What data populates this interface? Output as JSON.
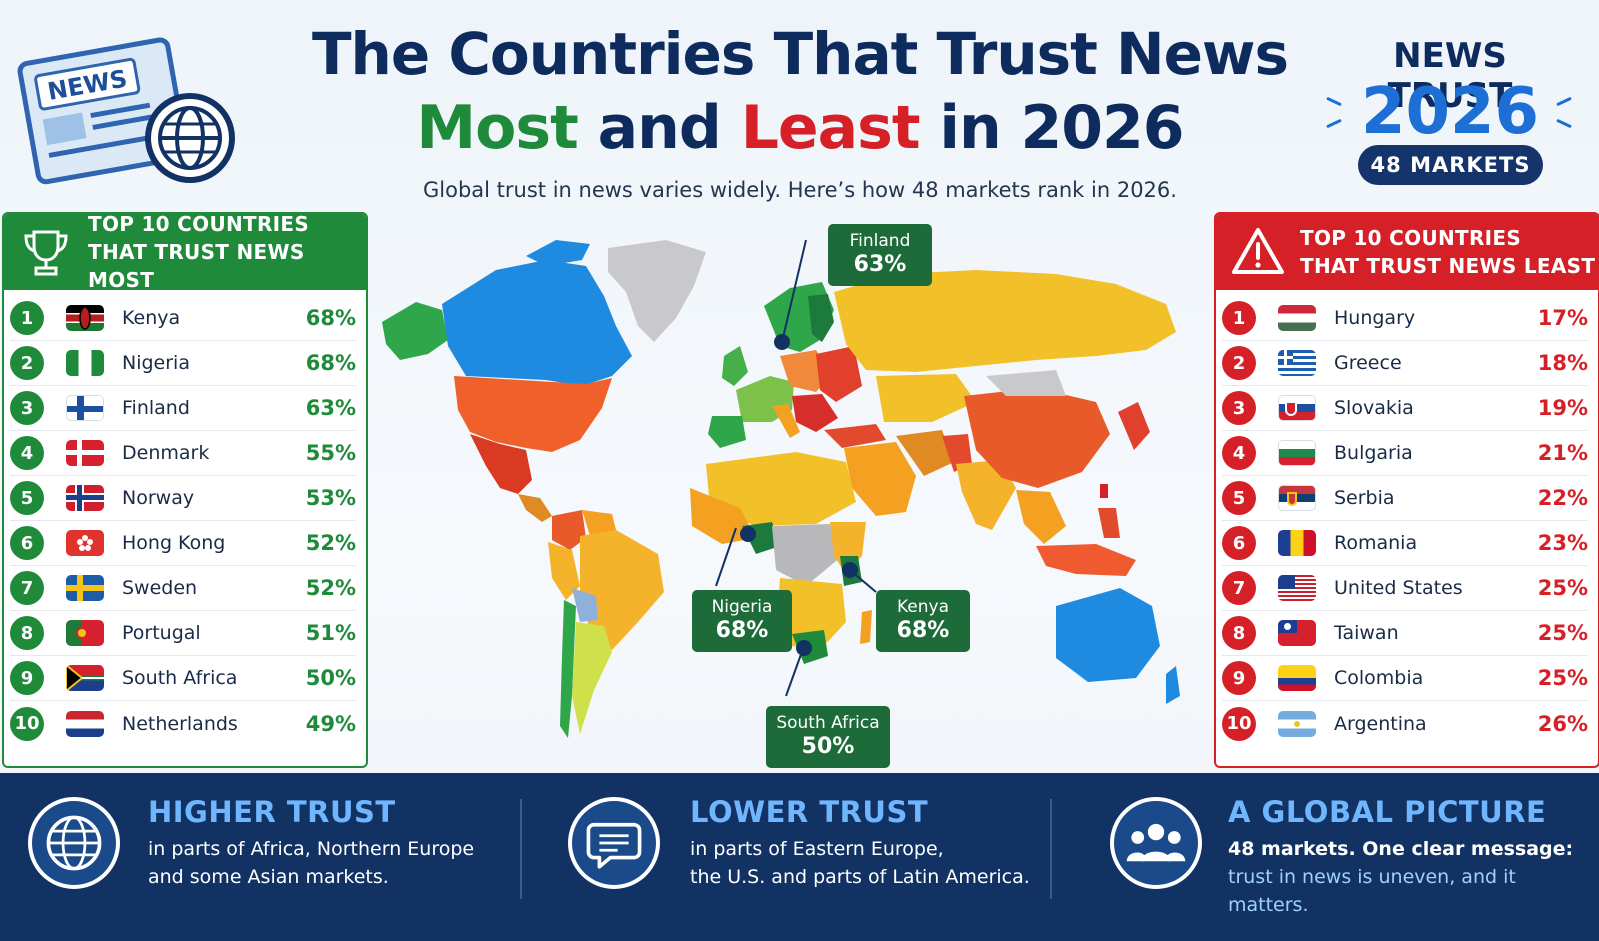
{
  "header": {
    "title_line1": "The Countries That Trust News",
    "title_most": "Most",
    "title_and": " and ",
    "title_least": "Least",
    "title_in": " in 2026",
    "subtitle": "Global trust in news varies widely. Here’s how 48 markets rank in 2026.",
    "news_icon_label": "NEWS"
  },
  "badge": {
    "top": "NEWS TRUST",
    "year": "2026",
    "pill": "48 MARKETS"
  },
  "most_panel": {
    "title_line1": "TOP 10 COUNTRIES",
    "title_line2": "THAT TRUST NEWS MOST",
    "icon": "trophy-icon",
    "color": "#1f8a3a",
    "rows": [
      {
        "rank": "1",
        "country": "Kenya",
        "pct": "68%"
      },
      {
        "rank": "2",
        "country": "Nigeria",
        "pct": "68%"
      },
      {
        "rank": "3",
        "country": "Finland",
        "pct": "63%"
      },
      {
        "rank": "4",
        "country": "Denmark",
        "pct": "55%"
      },
      {
        "rank": "5",
        "country": "Norway",
        "pct": "53%"
      },
      {
        "rank": "6",
        "country": "Hong Kong",
        "pct": "52%"
      },
      {
        "rank": "7",
        "country": "Sweden",
        "pct": "52%"
      },
      {
        "rank": "8",
        "country": "Portugal",
        "pct": "51%"
      },
      {
        "rank": "9",
        "country": "South Africa",
        "pct": "50%"
      },
      {
        "rank": "10",
        "country": "Netherlands",
        "pct": "49%"
      }
    ]
  },
  "least_panel": {
    "title_line1": "TOP 10 COUNTRIES",
    "title_line2": "THAT TRUST NEWS LEAST",
    "icon": "warning-icon",
    "color": "#d62028",
    "rows": [
      {
        "rank": "1",
        "country": "Hungary",
        "pct": "17%"
      },
      {
        "rank": "2",
        "country": "Greece",
        "pct": "18%"
      },
      {
        "rank": "3",
        "country": "Slovakia",
        "pct": "19%"
      },
      {
        "rank": "4",
        "country": "Bulgaria",
        "pct": "21%"
      },
      {
        "rank": "5",
        "country": "Serbia",
        "pct": "22%"
      },
      {
        "rank": "6",
        "country": "Romania",
        "pct": "23%"
      },
      {
        "rank": "7",
        "country": "United States",
        "pct": "25%"
      },
      {
        "rank": "8",
        "country": "Taiwan",
        "pct": "25%"
      },
      {
        "rank": "9",
        "country": "Colombia",
        "pct": "25%"
      },
      {
        "rank": "10",
        "country": "Argentina",
        "pct": "26%"
      }
    ]
  },
  "map": {
    "callouts": [
      {
        "name": "Finland",
        "pct": "63%"
      },
      {
        "name": "Nigeria",
        "pct": "68%"
      },
      {
        "name": "Kenya",
        "pct": "68%"
      },
      {
        "name": "South Africa",
        "pct": "50%"
      }
    ]
  },
  "footer": {
    "higher": {
      "title": "HIGHER TRUST",
      "line1": "in parts of Africa, Northern Europe",
      "line2": "and some Asian markets.",
      "icon": "globe-icon"
    },
    "lower": {
      "title": "LOWER TRUST",
      "line1": "in parts of Eastern Europe,",
      "line2": "the U.S. and parts of Latin America.",
      "icon": "speech-bubble-icon"
    },
    "global": {
      "title": "A GLOBAL PICTURE",
      "line1": "48 markets. One clear message:",
      "line2": "trust in news is uneven, and it matters.",
      "icon": "people-icon"
    }
  }
}
